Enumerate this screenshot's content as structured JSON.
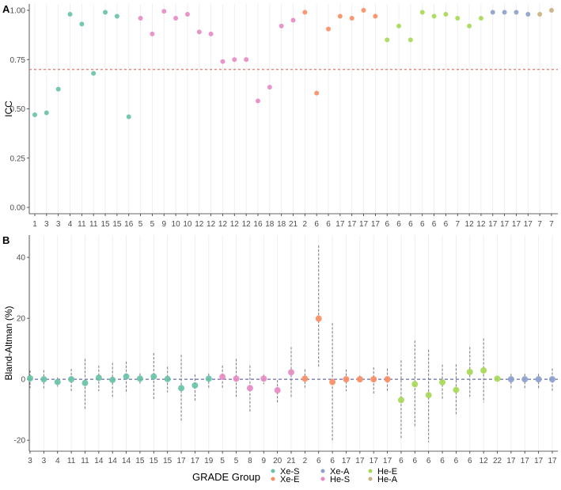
{
  "chart_data": [
    {
      "panel": "A",
      "type": "scatter",
      "ylabel": "ICC",
      "xlabel": "",
      "ylim": [
        0,
        1
      ],
      "yticks": [
        "0.00",
        "0.25",
        "0.50",
        "0.75",
        "1.00"
      ],
      "ytick_values": [
        0,
        0.25,
        0.5,
        0.75,
        1.0
      ],
      "reference_line": 0.7,
      "categories": [
        "1",
        "3",
        "3",
        "4",
        "11",
        "11",
        "15",
        "15",
        "16",
        "5",
        "5",
        "9",
        "10",
        "10",
        "12",
        "12",
        "12",
        "12",
        "12",
        "16",
        "18",
        "18",
        "21",
        "2",
        "6",
        "6",
        "17",
        "17",
        "17",
        "17",
        "6",
        "6",
        "6",
        "6",
        "6",
        "6",
        "7",
        "12",
        "12",
        "17",
        "17",
        "17",
        "17",
        "7",
        "7"
      ],
      "groups": [
        "Xe-S",
        "Xe-S",
        "Xe-S",
        "Xe-S",
        "Xe-S",
        "Xe-S",
        "Xe-S",
        "Xe-S",
        "Xe-S",
        "He-S",
        "He-S",
        "He-S",
        "He-S",
        "He-S",
        "He-S",
        "He-S",
        "He-S",
        "He-S",
        "He-S",
        "He-S",
        "He-S",
        "He-S",
        "He-S",
        "Xe-E",
        "Xe-E",
        "Xe-E",
        "Xe-E",
        "Xe-E",
        "Xe-E",
        "Xe-E",
        "He-E",
        "He-E",
        "He-E",
        "He-E",
        "He-E",
        "He-E",
        "He-E",
        "He-E",
        "He-E",
        "Xe-A",
        "Xe-A",
        "Xe-A",
        "Xe-A",
        "He-A",
        "He-A"
      ],
      "values": [
        0.47,
        0.48,
        0.6,
        0.98,
        0.93,
        0.68,
        0.99,
        0.97,
        0.46,
        0.96,
        0.88,
        0.995,
        0.96,
        0.98,
        0.89,
        0.88,
        0.74,
        0.75,
        0.75,
        0.54,
        0.61,
        0.92,
        0.95,
        0.99,
        0.58,
        0.905,
        0.97,
        0.96,
        1.0,
        0.97,
        0.85,
        0.92,
        0.85,
        0.99,
        0.97,
        0.98,
        0.96,
        0.92,
        0.96,
        0.99,
        0.99,
        0.99,
        0.98,
        0.98,
        1.0
      ]
    },
    {
      "panel": "B",
      "type": "scatter",
      "ylabel": "Bland-Altman (%)",
      "xlabel": "",
      "ylim": [
        -23.6,
        47.3
      ],
      "yticks": [
        "-20",
        "0",
        "20",
        "40"
      ],
      "ytick_values": [
        -20,
        0,
        20,
        40
      ],
      "reference_line": 0,
      "categories": [
        "3",
        "3",
        "4",
        "11",
        "11",
        "14",
        "14",
        "14",
        "15",
        "15",
        "15",
        "17",
        "17",
        "19",
        "5",
        "5",
        "8",
        "9",
        "20",
        "21",
        "2",
        "6",
        "6",
        "17",
        "17",
        "17",
        "17",
        "6",
        "6",
        "6",
        "6",
        "6",
        "6",
        "12",
        "22",
        "17",
        "17",
        "17",
        "17"
      ],
      "groups": [
        "Xe-S",
        "Xe-S",
        "Xe-S",
        "Xe-S",
        "Xe-S",
        "Xe-S",
        "Xe-S",
        "Xe-S",
        "Xe-S",
        "Xe-S",
        "Xe-S",
        "Xe-S",
        "Xe-S",
        "Xe-S",
        "He-S",
        "He-S",
        "He-S",
        "He-S",
        "He-S",
        "He-S",
        "Xe-E",
        "Xe-E",
        "Xe-E",
        "Xe-E",
        "Xe-E",
        "Xe-E",
        "Xe-E",
        "He-E",
        "He-E",
        "He-E",
        "He-E",
        "He-E",
        "He-E",
        "He-E",
        "He-E",
        "Xe-A",
        "Xe-A",
        "Xe-A",
        "Xe-A"
      ],
      "values": [
        0.3,
        0,
        -0.9,
        0,
        -1.2,
        0.5,
        -0.2,
        0.9,
        0.2,
        0.9,
        0.1,
        -2.9,
        -2,
        0.2,
        0.8,
        0.2,
        -2.9,
        0.2,
        -3.6,
        2.3,
        0.2,
        19.9,
        -0.9,
        0,
        0,
        0,
        0,
        -6.8,
        -1.6,
        -5.2,
        -1,
        -3.5,
        2.4,
        2.9,
        0.2,
        0,
        0,
        0,
        0
      ],
      "upper": [
        2.9,
        3,
        0.6,
        3.4,
        6.7,
        4.5,
        5.4,
        5.8,
        1.9,
        8.6,
        4.1,
        8,
        1.6,
        1.9,
        4.5,
        6.7,
        4.5,
        1.5,
        -0.3,
        10.6,
        3.2,
        43.9,
        18.4,
        3.2,
        1.2,
        3.9,
        3.5,
        6.2,
        12.7,
        9.7,
        4.8,
        4.9,
        10.6,
        13.4,
        0.6,
        1.8,
        1.8,
        1.8,
        3.5
      ],
      "lower": [
        -2.9,
        -3,
        -2.4,
        -3.9,
        -9.8,
        -3.9,
        -6.1,
        -4.6,
        -1.4,
        -7,
        -4.3,
        -13.9,
        -7,
        -3.3,
        -3.1,
        -6.1,
        -10.9,
        -1.6,
        -7.8,
        -6.1,
        -2.9,
        4.1,
        -20.2,
        -3.9,
        -1.1,
        -5.2,
        -4.2,
        -19.7,
        -15.8,
        -20.6,
        -6.8,
        -11.9,
        -6.3,
        -7.6,
        -0.4,
        -2.9,
        -2.9,
        -2.9,
        -4.2
      ]
    }
  ],
  "panel_labels": [
    "A",
    "B"
  ],
  "legend": {
    "title": "GRADE Group",
    "position": "bottom",
    "items": [
      {
        "label": "Xe-S",
        "color": "#66C2A5"
      },
      {
        "label": "Xe-E",
        "color": "#FC8D62"
      },
      {
        "label": "Xe-A",
        "color": "#8DA0CB"
      },
      {
        "label": "He-S",
        "color": "#E78AC3"
      },
      {
        "label": "He-E",
        "color": "#A6D854"
      },
      {
        "label": "He-A",
        "color": "#C9B07E"
      }
    ]
  }
}
